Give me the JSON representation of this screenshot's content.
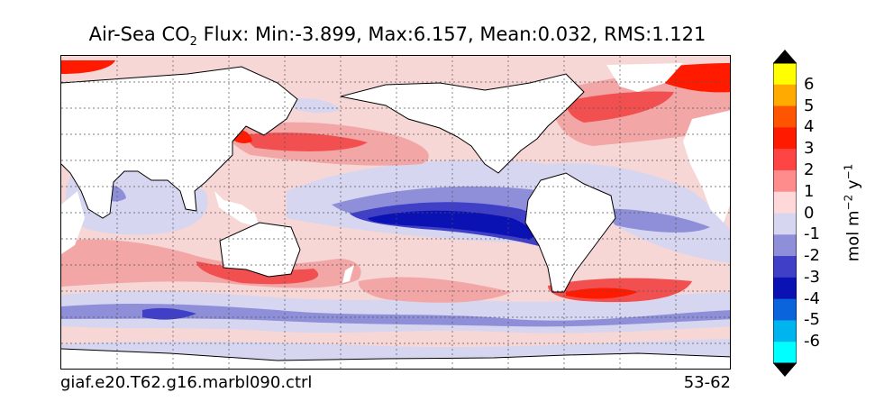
{
  "title": {
    "prefix": "Air-Sea CO",
    "subscript": "2",
    "suffix": " Flux: Min:-3.899, Max:6.157, Mean:0.032, RMS:1.121"
  },
  "footer": {
    "run_name": "giaf.e20.T62.g16.marbl090.ctrl",
    "years": "53-62"
  },
  "colorbar": {
    "unit_prefix": "mol m",
    "unit_exp1": "−2",
    "unit_mid": " y",
    "unit_exp2": "−1",
    "labels": [
      "6",
      "5",
      "4",
      "3",
      "2",
      "1",
      "0",
      "-1",
      "-2",
      "-3",
      "-4",
      "-5",
      "-6"
    ],
    "colors": [
      "#ffff00",
      "#ffaa00",
      "#ff5500",
      "#ff1a00",
      "#ff4444",
      "#ff8c8c",
      "#ffd9d9",
      "#d6d6f0",
      "#8f8fd9",
      "#3f3fc8",
      "#0a12b4",
      "#0a64dc",
      "#00b4f0",
      "#00ffff"
    ],
    "over_color": "#000000",
    "under_color": "#000000"
  },
  "map_colors": {
    "land": "#ffffff",
    "ocean_base": "#f7d6d6",
    "pos_1": "#f2a6a6",
    "pos_2": "#f25050",
    "pos_3": "#ff1a00",
    "neg_1": "#d6d6f0",
    "neg_2": "#8f8fd9",
    "neg_3": "#3f3fc8",
    "neg_4": "#0a12b4"
  }
}
